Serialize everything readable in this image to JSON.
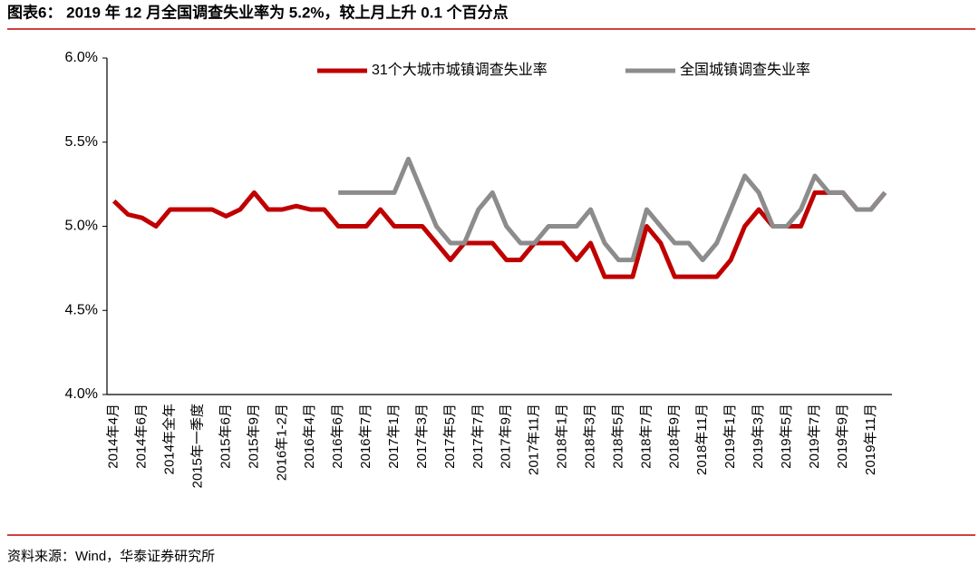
{
  "title": "图表6：  2019 年 12 月全国调查失业率为 5.2%，较上月上升 0.1 个百分点",
  "source": "资料来源：Wind，华泰证券研究所",
  "chart_data": {
    "type": "line",
    "categories": [
      "2014年4月",
      null,
      "2014年6月",
      null,
      "2014年全年",
      null,
      "2015年一季度",
      null,
      "2015年6月",
      null,
      "2015年9月",
      null,
      "2016年1-2月",
      null,
      "2016年4月",
      null,
      "2016年6月",
      null,
      "2016年7月",
      null,
      "2017年1月",
      null,
      "2017年3月",
      null,
      "2017年5月",
      null,
      "2017年7月",
      null,
      "2017年9月",
      null,
      "2017年11月",
      null,
      "2018年1月",
      null,
      "2018年3月",
      null,
      "2018年5月",
      null,
      "2018年7月",
      null,
      "2018年9月",
      null,
      "2018年11月",
      null,
      "2019年1月",
      null,
      "2019年3月",
      null,
      "2019年5月",
      null,
      "2019年7月",
      null,
      "2019年9月",
      null,
      "2019年11月",
      null
    ],
    "series": [
      {
        "name": "31个大城市城镇调查失业率",
        "color": "#c00000",
        "values": [
          5.15,
          5.07,
          5.05,
          5.0,
          5.1,
          5.1,
          5.1,
          5.1,
          5.06,
          5.1,
          5.2,
          5.1,
          5.1,
          5.12,
          5.1,
          5.1,
          5.0,
          5.0,
          5.0,
          5.1,
          5.0,
          5.0,
          5.0,
          4.9,
          4.8,
          4.9,
          4.9,
          4.9,
          4.8,
          4.8,
          4.9,
          4.9,
          4.9,
          4.8,
          4.9,
          4.7,
          4.7,
          4.7,
          5.0,
          4.9,
          4.7,
          4.7,
          4.7,
          4.7,
          4.8,
          5.0,
          5.1,
          5.0,
          5.0,
          5.0,
          5.2,
          5.2,
          5.2,
          5.1,
          5.1,
          5.2
        ]
      },
      {
        "name": "全国城镇调查失业率",
        "color": "#8c8c8c",
        "values": [
          null,
          null,
          null,
          null,
          null,
          null,
          null,
          null,
          null,
          null,
          null,
          null,
          null,
          null,
          null,
          null,
          5.2,
          5.2,
          5.2,
          5.2,
          5.2,
          5.4,
          5.2,
          5.0,
          4.9,
          4.9,
          5.1,
          5.2,
          5.0,
          4.9,
          4.9,
          5.0,
          5.0,
          5.0,
          5.1,
          4.9,
          4.8,
          4.8,
          5.1,
          5.0,
          4.9,
          4.9,
          4.8,
          4.9,
          5.1,
          5.3,
          5.2,
          5.0,
          5.0,
          5.1,
          5.3,
          5.2,
          5.2,
          5.1,
          5.1,
          5.2
        ]
      }
    ],
    "ylim": [
      4.0,
      6.0
    ],
    "yticks": [
      {
        "value": 4.0,
        "label": "4.0%"
      },
      {
        "value": 4.5,
        "label": "4.5%"
      },
      {
        "value": 5.0,
        "label": "5.0%"
      },
      {
        "value": 5.5,
        "label": "5.5%"
      },
      {
        "value": 6.0,
        "label": "6.0%"
      }
    ],
    "legend": "top"
  }
}
